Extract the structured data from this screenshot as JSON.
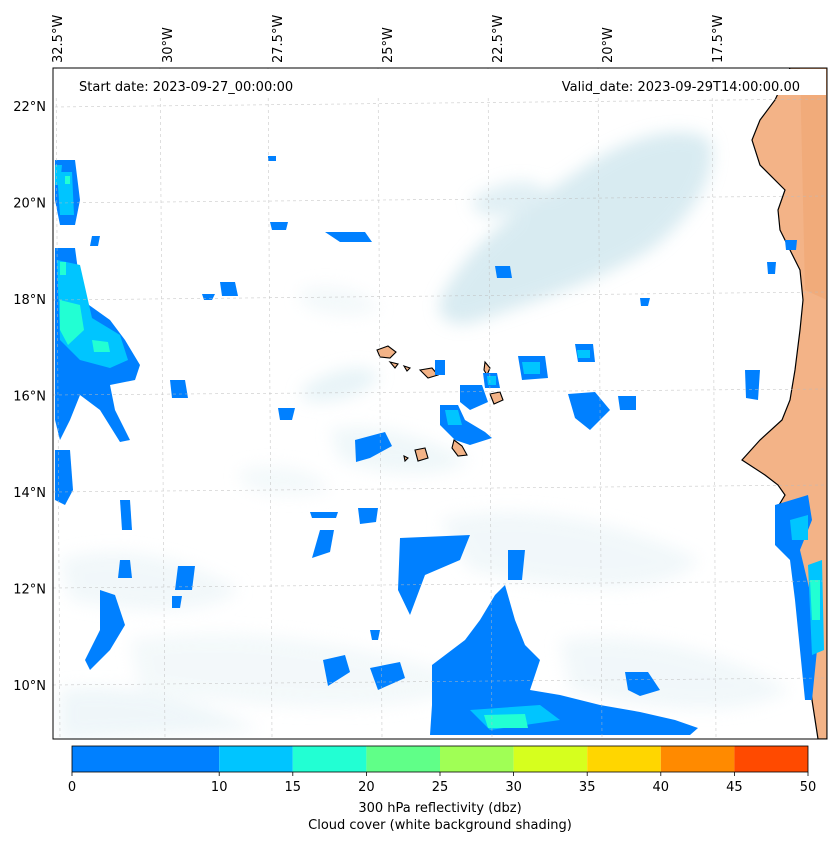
{
  "map": {
    "start_date": "Start date: 2023-09-27_00:00:00",
    "valid_date": "Valid_date: 2023-09-29T14:00:00.00",
    "lon_labels": [
      "32.5°W",
      "30°W",
      "27.5°W",
      "25°W",
      "22.5°W",
      "20°W",
      "17.5°W"
    ],
    "lat_labels": [
      "22°N",
      "20°N",
      "18°N",
      "16°N",
      "14°N",
      "12°N",
      "10°N"
    ],
    "lon_values": [
      -32.5,
      -30,
      -27.5,
      -25,
      -22.5,
      -20,
      -17.5
    ],
    "lat_values": [
      22,
      20,
      18,
      16,
      14,
      12,
      10
    ],
    "extent": {
      "lon_min": -32.6,
      "lon_max": -15.2,
      "lat_min": 8.9,
      "lat_max": 22.8
    },
    "land_color": "#f3b387",
    "coast_color": "#000000"
  },
  "colorbar": {
    "ticks": [
      "0",
      "5",
      "10",
      "15",
      "20",
      "25",
      "30",
      "35",
      "40",
      "45",
      "50"
    ],
    "tick_labels_visible": [
      "0",
      "10",
      "15",
      "20",
      "25",
      "30",
      "35",
      "40",
      "45",
      "50"
    ],
    "colors": [
      "#0080ff",
      "#00c5ff",
      "#22ffd3",
      "#60ff88",
      "#a0ff55",
      "#d6ff1e",
      "#ffd600",
      "#ff8a00",
      "#ff4a00"
    ],
    "bins": [
      [
        0,
        10
      ],
      [
        10,
        15
      ],
      [
        15,
        20
      ],
      [
        20,
        25
      ],
      [
        25,
        30
      ],
      [
        30,
        35
      ],
      [
        35,
        40
      ],
      [
        40,
        45
      ],
      [
        45,
        50
      ]
    ],
    "label_line1": "300 hPa reflectivity (dbz)",
    "label_line2": "Cloud cover (white background shading)"
  }
}
